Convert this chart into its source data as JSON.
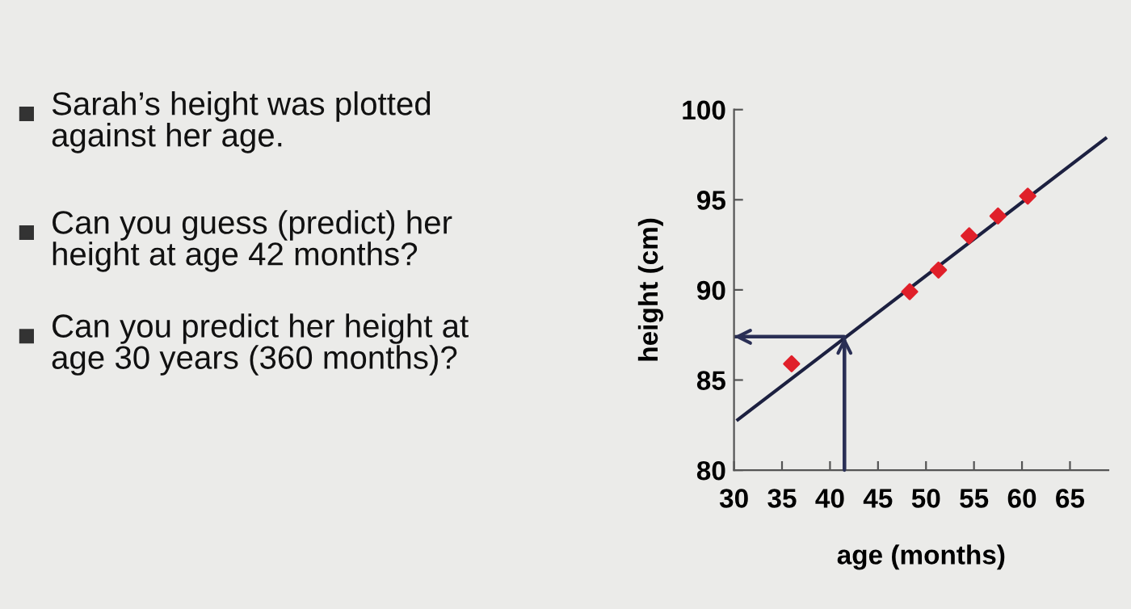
{
  "chart_data": {
    "type": "scatter",
    "xlabel": "age (months)",
    "ylabel": "height (cm)",
    "annotations": [
      "Sarah’s height was plotted\nagainst her age.",
      "Can you guess (predict) her\nheight at age 42 months?",
      "Can you predict her height at\nage 30 years (360 months)?"
    ],
    "series": [
      {
        "color": "#e0202a",
        "marker": "diamond",
        "x": [
          36.0,
          48.3,
          51.3,
          54.5,
          57.5,
          60.6
        ],
        "values": [
          85.9,
          89.9,
          91.1,
          93.0,
          94.1,
          95.2
        ]
      },
      {
        "type": "line",
        "color": "#1c2040",
        "marker": "none",
        "x": [
          30.4,
          68.7
        ],
        "values": [
          82.8,
          98.4
        ]
      },
      {
        "type": "line",
        "color": "#2a2f55",
        "marker": "none",
        "x": [
          41.5,
          41.5,
          30.0
        ],
        "values": [
          80,
          87.4,
          87.4
        ]
      }
    ],
    "xlim": [
      30,
      69
    ],
    "ylim": [
      80,
      100
    ],
    "xticks": [
      30,
      35,
      40,
      45,
      50,
      55,
      60,
      65
    ],
    "yticks": [
      80,
      85,
      90,
      95,
      100
    ],
    "grid": false,
    "legend": false
  }
}
